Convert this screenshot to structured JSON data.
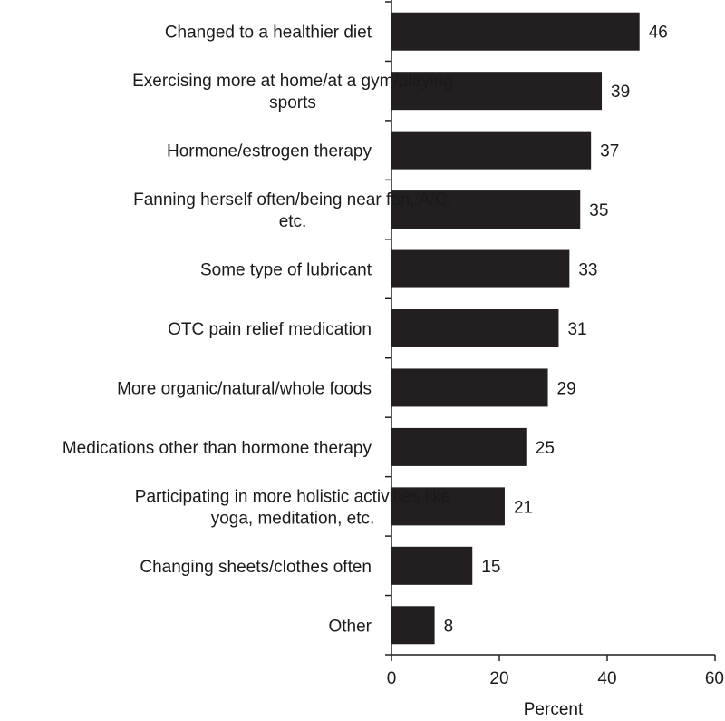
{
  "chart_data": {
    "type": "bar",
    "orientation": "horizontal",
    "categories": [
      [
        "Changed to a healthier diet"
      ],
      [
        "Exercising more at home/at a gym/playing",
        "sports"
      ],
      [
        "Hormone/estrogen therapy"
      ],
      [
        "Fanning herself often/being near fan, A/C,",
        "etc."
      ],
      [
        "Some type of lubricant"
      ],
      [
        "OTC pain relief medication"
      ],
      [
        "More organic/natural/whole foods"
      ],
      [
        "Medications other than hormone therapy"
      ],
      [
        "Participating in more holistic activities like",
        "yoga, meditation, etc."
      ],
      [
        "Changing sheets/clothes often"
      ],
      [
        "Other"
      ]
    ],
    "values": [
      46,
      39,
      37,
      35,
      33,
      31,
      29,
      25,
      21,
      15,
      8
    ],
    "xlabel": "Percent",
    "ylabel": "",
    "xlim": [
      0,
      60
    ],
    "xticks": [
      0,
      20,
      40,
      60
    ],
    "bar_color": "#231f20",
    "grid": false,
    "legend": "none"
  }
}
